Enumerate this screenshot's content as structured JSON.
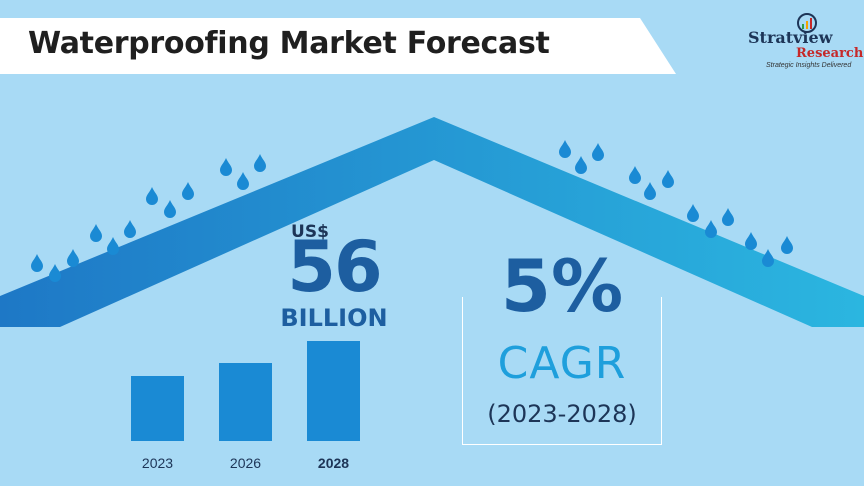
{
  "header": {
    "title": "Waterproofing Market Forecast"
  },
  "logo": {
    "name_part1": "Stratview",
    "name_part2": "Research",
    "tagline": "Strategic Insights Delivered"
  },
  "market_size": {
    "currency": "US$",
    "value": "56",
    "unit": "BILLION"
  },
  "growth": {
    "value": "5%",
    "label": "CAGR",
    "period": "(2023-2028)"
  },
  "colors": {
    "background": "#a8daf5",
    "roof_dark": "#1e7ec8",
    "roof_light": "#2bb3e0",
    "bar": "#1a8ad4",
    "drop": "#1a8ad4",
    "accent_text": "#1d5ea0"
  },
  "chart_data": {
    "type": "bar",
    "categories": [
      "2023",
      "2026",
      "2028"
    ],
    "values": [
      65,
      78,
      100
    ],
    "highlight_category": "2028",
    "ylim": [
      0,
      100
    ],
    "title": "",
    "xlabel": "",
    "ylabel": ""
  }
}
